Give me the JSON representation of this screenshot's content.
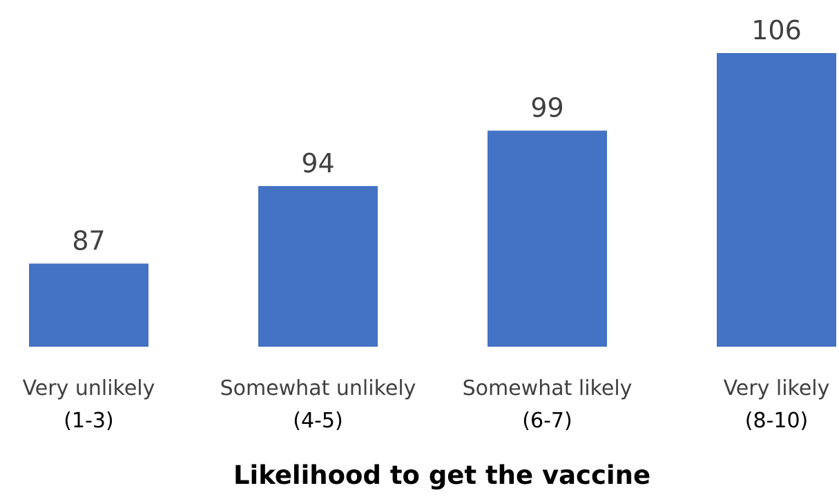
{
  "chart_data": {
    "type": "bar",
    "categories": [
      [
        "Very unlikely",
        "(1-3)"
      ],
      [
        "Somewhat unlikely",
        "(4-5)"
      ],
      [
        "Somewhat likely",
        "(6-7)"
      ],
      [
        "Very likely",
        "(8-10)"
      ]
    ],
    "values": [
      87,
      94,
      99,
      106
    ],
    "value_labels": [
      "87",
      "94",
      "99",
      "106"
    ],
    "title": "",
    "xlabel": "Likelihood to get the vaccine",
    "ylabel": "",
    "ylim": [
      79.5,
      106
    ],
    "grid": false,
    "bar_color": "#4472C4"
  }
}
